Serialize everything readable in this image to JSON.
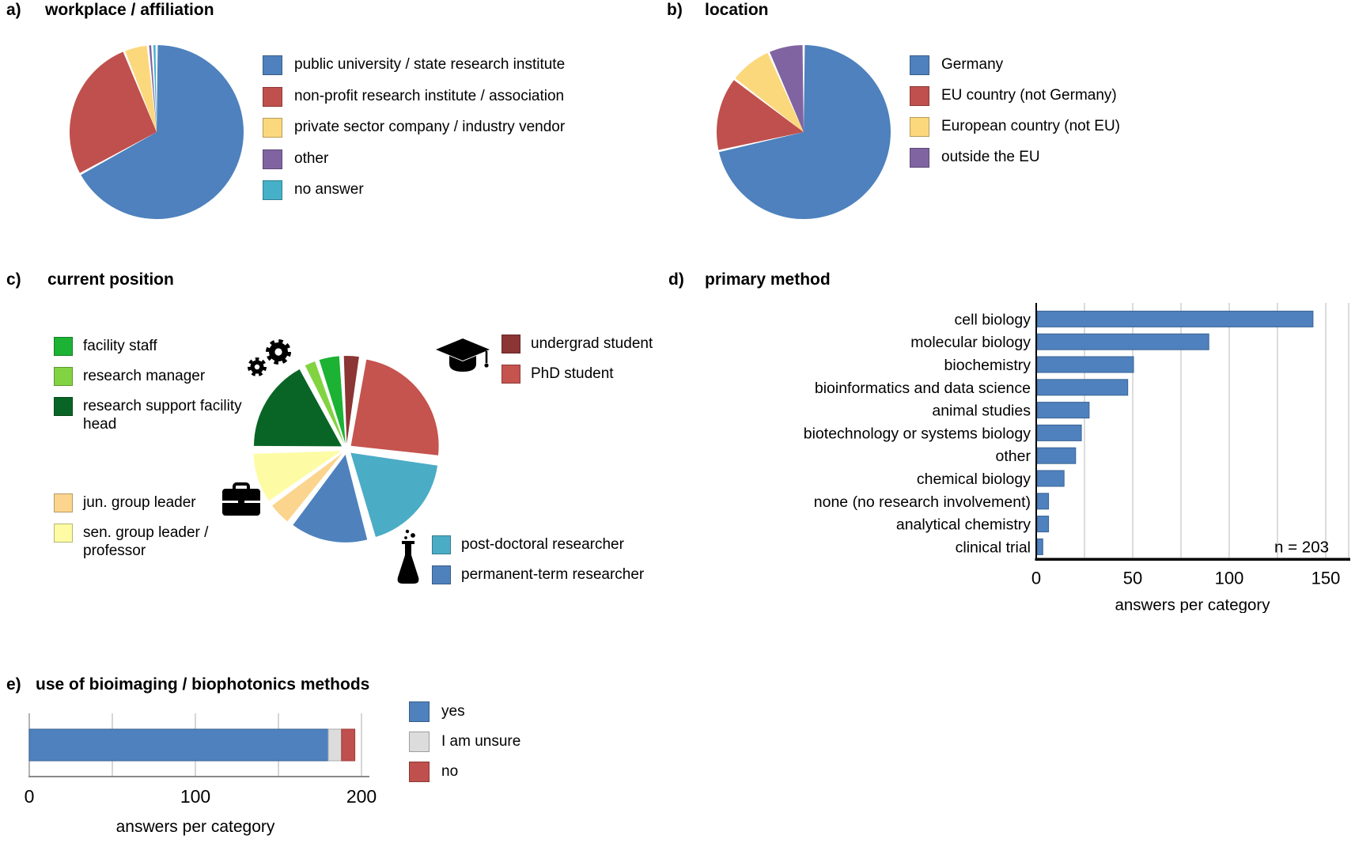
{
  "chart_data": [
    {
      "id": "a",
      "panel": "a)",
      "type": "pie",
      "title": "workplace / affiliation",
      "legend_position": "right",
      "slices": [
        {
          "label": "public university / state research institute",
          "pct": 67.0,
          "color": "#4E81BD"
        },
        {
          "label": "non-profit research institute / association",
          "pct": 26.9,
          "color": "#C0504D"
        },
        {
          "label": "private sector company / industry vendor",
          "pct": 4.5,
          "color": "#FCD87D"
        },
        {
          "label": "other",
          "pct": 0.8,
          "color": "#8064A2"
        },
        {
          "label": "no answer",
          "pct": 0.8,
          "color": "#45B0C8"
        }
      ]
    },
    {
      "id": "b",
      "panel": "b)",
      "type": "pie",
      "title": "location",
      "legend_position": "right",
      "slices": [
        {
          "label": "Germany",
          "pct": 71.5,
          "color": "#4E81BD"
        },
        {
          "label": "EU country (not Germany)",
          "pct": 13.9,
          "color": "#C0504D"
        },
        {
          "label": "European country (not EU)",
          "pct": 8.0,
          "color": "#FCD87D"
        },
        {
          "label": "outside the EU",
          "pct": 6.6,
          "color": "#8064A2"
        }
      ]
    },
    {
      "id": "c",
      "panel": "c)",
      "type": "pie",
      "title": "current position",
      "exploded": true,
      "icons": [
        "gears",
        "graduation-cap",
        "briefcase",
        "flask"
      ],
      "slices": [
        {
          "label": "undergrad student",
          "pct": 3.3,
          "color": "#8B3535"
        },
        {
          "label": "PhD student",
          "pct": 24.0,
          "color": "#C5534E"
        },
        {
          "label": "post-doctoral researcher",
          "pct": 18.3,
          "color": "#4BACC6"
        },
        {
          "label": "permanent-term researcher",
          "pct": 14.5,
          "color": "#4F81BD"
        },
        {
          "label": "jun. group leader",
          "pct": 4.5,
          "color": "#FBD58E"
        },
        {
          "label": "sen. group leader / professor",
          "pct": 9.5,
          "color": "#FDFCA5"
        },
        {
          "label": "research support facility head",
          "pct": 17.2,
          "color": "#096526"
        },
        {
          "label": "research manager",
          "pct": 2.5,
          "color": "#82D341"
        },
        {
          "label": "facility staff",
          "pct": 4.2,
          "color": "#1CB233"
        }
      ]
    },
    {
      "id": "d",
      "panel": "d)",
      "type": "bar",
      "title": "primary method",
      "categories": [
        "cell biology",
        "molecular biology",
        "biochemistry",
        "bioinformatics and data science",
        "animal studies",
        "biotechnology or systems biology",
        "other",
        "chemical biology",
        "none (no research involvement)",
        "analytical chemistry",
        "clinical trial"
      ],
      "values": [
        143,
        89,
        50,
        47,
        27,
        23,
        20,
        14,
        6,
        6,
        3
      ],
      "bar_color": "#4E81BD",
      "bar_border": "#3A6395",
      "xlabel": "answers per category",
      "ticks": [
        0,
        50,
        100,
        150
      ],
      "gridline_step": 25,
      "xlim": [
        0,
        162
      ],
      "grid": true,
      "annotation": "n = 203"
    },
    {
      "id": "e",
      "panel": "e)",
      "type": "stacked-bar",
      "title": "use of bioimaging / biophotonics methods",
      "segments": [
        {
          "label": "yes",
          "value": 180,
          "color": "#4E81BD",
          "border": "#3A6395"
        },
        {
          "label": "I am unsure",
          "value": 8,
          "color": "#DCDCDC",
          "border": "#ABABAB"
        },
        {
          "label": "no",
          "value": 8,
          "color": "#C0504D",
          "border": "#9E3E3B"
        }
      ],
      "xlabel": "answers per category",
      "ticks": [
        0,
        100,
        200
      ],
      "gridline_step": 50,
      "xlim": [
        0,
        200
      ],
      "grid": true
    }
  ]
}
